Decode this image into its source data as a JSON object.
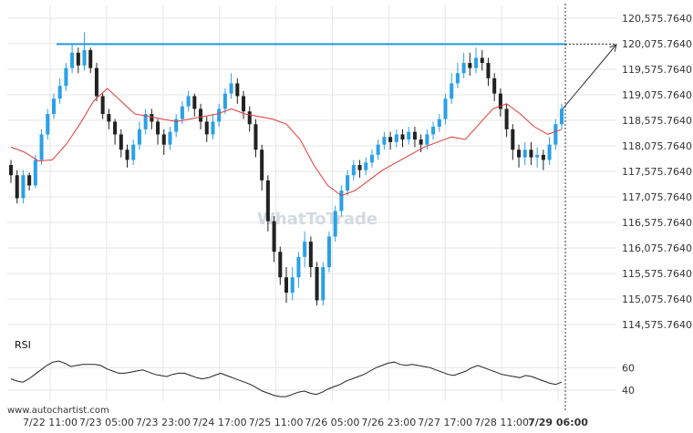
{
  "watermark": "WhatToTrade",
  "source": "www.autochartist.com",
  "colors": {
    "bull": "#2aa1e6",
    "bear": "#222222",
    "ma": "#e23a3a",
    "level": "#1f9be0",
    "grid": "#e6e6e6",
    "rsi": "#222222"
  },
  "chart_data": [
    {
      "type": "candlestick",
      "y_ticks": [
        "120,575.7640",
        "120,075.7640",
        "119,575.7640",
        "119,075.7640",
        "118,575.7640",
        "118,075.7640",
        "117,575.7640",
        "117,075.7640",
        "116,575.7640",
        "116,075.7640",
        "115,575.7640",
        "115,075.7640",
        "114,575.7640"
      ],
      "ylim": [
        114325.764,
        120825.764
      ],
      "x_ticks": [
        "7/22 11:00",
        "7/23 05:00",
        "7/23 23:00",
        "7/24 17:00",
        "7/25 11:00",
        "7/26 05:00",
        "7/26 23:00",
        "7/27 17:00",
        "7/28 11:00",
        "7/29 06:00"
      ],
      "resistance_level": 120070,
      "projection_target": 120060,
      "moving_average": [
        118050,
        117950,
        117780,
        117800,
        118100,
        118500,
        118950,
        119200,
        118950,
        118700,
        118650,
        118600,
        118550,
        118600,
        118650,
        118700,
        118800,
        118700,
        118650,
        118600,
        118500,
        118200,
        117700,
        117300,
        117100,
        117200,
        117400,
        117600,
        117750,
        117900,
        118050,
        118150,
        118250,
        118200,
        118500,
        118800,
        118900,
        118700,
        118450,
        118300,
        118400
      ],
      "candles": [
        [
          117700,
          117500,
          117800,
          117350
        ],
        [
          117500,
          117050,
          117600,
          116950
        ],
        [
          117050,
          117500,
          117600,
          116950
        ],
        [
          117500,
          117300,
          117550,
          117200
        ],
        [
          117300,
          117800,
          117900,
          117250
        ],
        [
          117800,
          118300,
          118400,
          117700
        ],
        [
          118300,
          118700,
          118800,
          118200
        ],
        [
          118700,
          119000,
          119100,
          118600
        ],
        [
          119000,
          119250,
          119400,
          118900
        ],
        [
          119250,
          119600,
          119700,
          119150
        ],
        [
          119600,
          119900,
          120050,
          119500
        ],
        [
          119900,
          119650,
          120000,
          119500
        ],
        [
          119650,
          119950,
          120300,
          119550
        ],
        [
          119950,
          119600,
          120000,
          119500
        ],
        [
          119600,
          119050,
          119700,
          118950
        ],
        [
          119050,
          118700,
          119100,
          118600
        ],
        [
          118700,
          118550,
          118800,
          118400
        ],
        [
          118550,
          118300,
          118600,
          118100
        ],
        [
          118300,
          118000,
          118400,
          117850
        ],
        [
          118000,
          117800,
          118100,
          117650
        ],
        [
          117800,
          118100,
          118200,
          117700
        ],
        [
          118100,
          118400,
          118550,
          118000
        ],
        [
          118400,
          118700,
          118800,
          118300
        ],
        [
          118700,
          118550,
          118800,
          118400
        ],
        [
          118550,
          118300,
          118600,
          118100
        ],
        [
          118300,
          118100,
          118400,
          117900
        ],
        [
          118100,
          118350,
          118450,
          118000
        ],
        [
          118350,
          118600,
          118700,
          118250
        ],
        [
          118600,
          118850,
          118950,
          118500
        ],
        [
          118850,
          119050,
          119150,
          118750
        ],
        [
          119050,
          118800,
          119100,
          118650
        ],
        [
          118800,
          118550,
          118900,
          118400
        ],
        [
          118550,
          118300,
          118650,
          118150
        ],
        [
          118300,
          118550,
          118700,
          118200
        ],
        [
          118550,
          118800,
          118900,
          118450
        ],
        [
          118800,
          119100,
          119200,
          118700
        ],
        [
          119100,
          119300,
          119500,
          119000
        ],
        [
          119300,
          119050,
          119400,
          118900
        ],
        [
          119050,
          118750,
          119150,
          118600
        ],
        [
          118750,
          118500,
          118850,
          118350
        ],
        [
          118500,
          118000,
          118600,
          117850
        ],
        [
          118000,
          117400,
          118100,
          117200
        ],
        [
          117400,
          116600,
          117500,
          116400
        ],
        [
          116600,
          116000,
          116700,
          115800
        ],
        [
          116000,
          115500,
          116100,
          115350
        ],
        [
          115500,
          115200,
          115700,
          115000
        ],
        [
          115200,
          115500,
          115700,
          115050
        ],
        [
          115500,
          115900,
          116000,
          115300
        ],
        [
          115900,
          116200,
          116400,
          115700
        ],
        [
          116200,
          115700,
          116300,
          115500
        ],
        [
          115700,
          115050,
          115800,
          114950
        ],
        [
          115050,
          115700,
          115800,
          114950
        ],
        [
          115700,
          116300,
          116400,
          115600
        ],
        [
          116300,
          116800,
          116900,
          116200
        ],
        [
          116800,
          117200,
          117300,
          116700
        ],
        [
          117200,
          117500,
          117600,
          117100
        ],
        [
          117500,
          117700,
          117800,
          117400
        ],
        [
          117700,
          117600,
          117800,
          117450
        ],
        [
          117600,
          117750,
          117850,
          117500
        ],
        [
          117750,
          117900,
          118000,
          117650
        ],
        [
          117900,
          118100,
          118200,
          117800
        ],
        [
          118100,
          118250,
          118350,
          118000
        ],
        [
          118250,
          118150,
          118350,
          118000
        ],
        [
          118150,
          118300,
          118400,
          118050
        ],
        [
          118300,
          118200,
          118400,
          118050
        ],
        [
          118200,
          118350,
          118450,
          118100
        ],
        [
          118350,
          118200,
          118450,
          118050
        ],
        [
          118200,
          118100,
          118300,
          117950
        ],
        [
          118100,
          118300,
          118400,
          118000
        ],
        [
          118300,
          118450,
          118550,
          118200
        ],
        [
          118450,
          118600,
          118700,
          118350
        ],
        [
          118600,
          119000,
          119100,
          118500
        ],
        [
          119000,
          119300,
          119500,
          118900
        ],
        [
          119300,
          119500,
          119700,
          119200
        ],
        [
          119500,
          119700,
          119900,
          119400
        ],
        [
          119700,
          119600,
          119900,
          119450
        ],
        [
          119600,
          119800,
          120000,
          119500
        ],
        [
          119800,
          119700,
          119950,
          119550
        ],
        [
          119700,
          119400,
          119800,
          119250
        ],
        [
          119400,
          119100,
          119500,
          118950
        ],
        [
          119100,
          118800,
          119200,
          118650
        ],
        [
          118800,
          118400,
          118900,
          118250
        ],
        [
          118400,
          118000,
          118500,
          117800
        ],
        [
          118000,
          117850,
          118100,
          117650
        ],
        [
          117850,
          118000,
          118150,
          117700
        ],
        [
          118000,
          117850,
          118150,
          117700
        ],
        [
          117850,
          117900,
          118050,
          117650
        ],
        [
          117900,
          117800,
          118000,
          117600
        ],
        [
          117800,
          118100,
          118250,
          117700
        ],
        [
          118100,
          118500,
          118600,
          118000
        ],
        [
          118500,
          118800,
          118900,
          118400
        ]
      ]
    },
    {
      "type": "line",
      "title": "RSI",
      "y_ticks": [
        "60",
        "40"
      ],
      "ylim": [
        30,
        75
      ],
      "values": [
        50,
        48,
        47,
        50,
        54,
        58,
        62,
        65,
        66,
        64,
        61,
        62,
        63,
        63,
        63,
        62,
        59,
        57,
        55,
        55,
        56,
        57,
        58,
        56,
        54,
        53,
        52,
        54,
        55,
        55,
        53,
        51,
        50,
        51,
        53,
        55,
        53,
        51,
        49,
        47,
        45,
        42,
        39,
        37,
        35,
        34,
        34,
        36,
        38,
        39,
        37,
        36,
        38,
        41,
        43,
        45,
        48,
        50,
        52,
        54,
        57,
        60,
        62,
        64,
        65,
        63,
        62,
        63,
        62,
        61,
        60,
        58,
        56,
        54,
        53,
        55,
        57,
        60,
        62,
        60,
        58,
        56,
        54,
        53,
        52,
        51,
        53,
        52,
        50,
        48,
        46,
        45,
        47
      ]
    }
  ]
}
